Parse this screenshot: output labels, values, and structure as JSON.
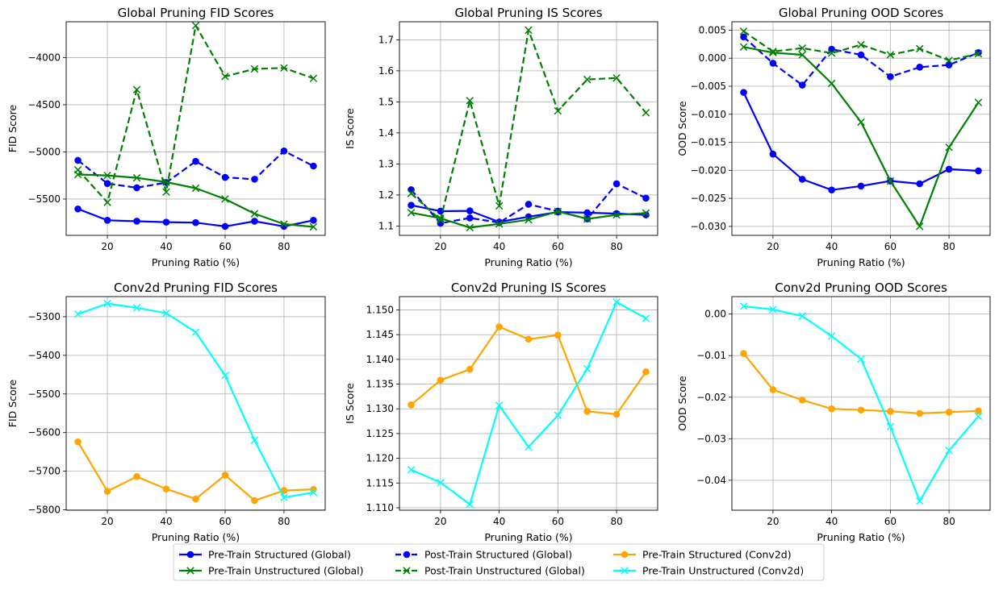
{
  "chart_data": [
    {
      "type": "line",
      "title": "Global Pruning FID Scores",
      "xlabel": "Pruning Ratio (%)",
      "ylabel": "FID Score",
      "xlim": [
        6,
        94
      ],
      "ylim": [
        -5885,
        -3620
      ],
      "xticks": [
        20,
        40,
        60,
        80
      ],
      "yticks": [
        -5500,
        -5000,
        -4500,
        -4000
      ],
      "grid": true,
      "x": [
        10,
        20,
        30,
        40,
        50,
        60,
        70,
        80,
        90
      ],
      "series": [
        {
          "name": "Pre-Train Structured (Global)",
          "color": "#0000ff",
          "marker": "circle",
          "dash": false,
          "values": [
            -5605,
            -5725,
            -5735,
            -5745,
            -5750,
            -5790,
            -5735,
            -5790,
            -5725
          ]
        },
        {
          "name": "Post-Train Structured (Global)",
          "color": "#0000ff",
          "marker": "circle",
          "dash": true,
          "values": [
            -5090,
            -5335,
            -5380,
            -5325,
            -5100,
            -5270,
            -5290,
            -4990,
            -5150
          ]
        },
        {
          "name": "Pre-Train Unstructured (Global)",
          "color": "#008000",
          "marker": "x",
          "dash": false,
          "values": [
            -5240,
            -5250,
            -5275,
            -5320,
            -5385,
            -5500,
            -5655,
            -5765,
            -5795
          ]
        },
        {
          "name": "Post-Train Unstructured (Global)",
          "color": "#008000",
          "marker": "x",
          "dash": true,
          "values": [
            -5190,
            -5535,
            -4340,
            -5425,
            -3660,
            -4200,
            -4120,
            -4110,
            -4220
          ]
        }
      ]
    },
    {
      "type": "line",
      "title": "Global Pruning IS Scores",
      "xlabel": "Pruning Ratio (%)",
      "ylabel": "IS Score",
      "xlim": [
        6,
        94
      ],
      "ylim": [
        1.07,
        1.758
      ],
      "xticks": [
        20,
        40,
        60,
        80
      ],
      "yticks": [
        1.1,
        1.2,
        1.3,
        1.4,
        1.5,
        1.6,
        1.7
      ],
      "grid": true,
      "x": [
        10,
        20,
        30,
        40,
        50,
        60,
        70,
        80,
        90
      ],
      "series": [
        {
          "name": "Pre-Train Structured (Global)",
          "color": "#0000ff",
          "marker": "circle",
          "dash": false,
          "values": [
            1.167,
            1.148,
            1.149,
            1.113,
            1.13,
            1.145,
            1.143,
            1.14,
            1.136
          ]
        },
        {
          "name": "Post-Train Structured (Global)",
          "color": "#0000ff",
          "marker": "circle",
          "dash": true,
          "values": [
            1.217,
            1.109,
            1.126,
            1.111,
            1.17,
            1.148,
            1.123,
            1.236,
            1.19
          ]
        },
        {
          "name": "Pre-Train Unstructured (Global)",
          "color": "#008000",
          "marker": "x",
          "dash": false,
          "values": [
            1.143,
            1.125,
            1.095,
            1.107,
            1.12,
            1.147,
            1.123,
            1.136,
            1.142
          ]
        },
        {
          "name": "Post-Train Unstructured (Global)",
          "color": "#008000",
          "marker": "x",
          "dash": true,
          "values": [
            1.205,
            1.12,
            1.504,
            1.165,
            1.731,
            1.471,
            1.572,
            1.577,
            1.465
          ]
        }
      ]
    },
    {
      "type": "line",
      "title": "Global Pruning OOD Scores",
      "xlabel": "Pruning Ratio (%)",
      "ylabel": "OOD Score",
      "xlim": [
        6,
        94
      ],
      "ylim": [
        -0.0316,
        0.0065
      ],
      "xticks": [
        20,
        40,
        60,
        80
      ],
      "ytick_labels": [
        "0.005",
        "0.000",
        "−0.005",
        "−0.010",
        "−0.015",
        "−0.020",
        "−0.025",
        "−0.030"
      ],
      "yticks": [
        0.005,
        0.0,
        -0.005,
        -0.01,
        -0.015,
        -0.02,
        -0.025,
        -0.03
      ],
      "grid": true,
      "x": [
        10,
        20,
        30,
        40,
        50,
        60,
        70,
        80,
        90
      ],
      "series": [
        {
          "name": "Pre-Train Structured (Global)",
          "color": "#0000ff",
          "marker": "circle",
          "dash": false,
          "values": [
            -0.0061,
            -0.0171,
            -0.0216,
            -0.0235,
            -0.0228,
            -0.0219,
            -0.0224,
            -0.0198,
            -0.0201
          ]
        },
        {
          "name": "Post-Train Structured (Global)",
          "color": "#0000ff",
          "marker": "circle",
          "dash": true,
          "values": [
            0.0038,
            -0.0009,
            -0.0048,
            0.0016,
            0.0006,
            -0.0033,
            -0.0016,
            -0.0012,
            0.001
          ]
        },
        {
          "name": "Pre-Train Unstructured (Global)",
          "color": "#008000",
          "marker": "x",
          "dash": false,
          "values": [
            0.002,
            0.001,
            0.0006,
            -0.0045,
            -0.0114,
            -0.0219,
            -0.03,
            -0.0159,
            -0.0079
          ]
        },
        {
          "name": "Post-Train Unstructured (Global)",
          "color": "#008000",
          "marker": "x",
          "dash": true,
          "values": [
            0.0048,
            0.0012,
            0.0018,
            0.0009,
            0.0024,
            0.0006,
            0.0017,
            -0.0004,
            0.0008
          ]
        }
      ]
    },
    {
      "type": "line",
      "title": "Conv2d Pruning FID Scores",
      "xlabel": "Pruning Ratio (%)",
      "ylabel": "FID Score",
      "xlim": [
        6,
        94
      ],
      "ylim": [
        -5801,
        -5248
      ],
      "xticks": [
        20,
        40,
        60,
        80
      ],
      "yticks": [
        -5800,
        -5700,
        -5600,
        -5500,
        -5400,
        -5300
      ],
      "grid": true,
      "x": [
        10,
        20,
        30,
        40,
        50,
        60,
        70,
        80,
        90
      ],
      "series": [
        {
          "name": "Pre-Train Structured (Conv2d)",
          "color": "#ffa500",
          "marker": "circle",
          "dash": false,
          "values": [
            -5624,
            -5752,
            -5714,
            -5746,
            -5772,
            -5710,
            -5776,
            -5750,
            -5747
          ]
        },
        {
          "name": "Pre-Train Unstructured (Conv2d)",
          "color": "#00ffff",
          "marker": "x",
          "dash": false,
          "values": [
            -5293,
            -5266,
            -5277,
            -5291,
            -5340,
            -5452,
            -5620,
            -5768,
            -5755
          ]
        }
      ]
    },
    {
      "type": "line",
      "title": "Conv2d Pruning IS Scores",
      "xlabel": "Pruning Ratio (%)",
      "ylabel": "IS Score",
      "xlim": [
        6,
        94
      ],
      "ylim": [
        1.1095,
        1.1527
      ],
      "xticks": [
        20,
        40,
        60,
        80
      ],
      "yticks": [
        1.11,
        1.115,
        1.12,
        1.125,
        1.13,
        1.135,
        1.14,
        1.145,
        1.15
      ],
      "ytick_labels": [
        "1.110",
        "1.115",
        "1.120",
        "1.125",
        "1.130",
        "1.135",
        "1.140",
        "1.145",
        "1.150"
      ],
      "grid": true,
      "x": [
        10,
        20,
        30,
        40,
        50,
        60,
        70,
        80,
        90
      ],
      "series": [
        {
          "name": "Pre-Train Structured (Conv2d)",
          "color": "#ffa500",
          "marker": "circle",
          "dash": false,
          "values": [
            1.1308,
            1.1358,
            1.138,
            1.1466,
            1.1441,
            1.1449,
            1.1295,
            1.1289,
            1.1375
          ]
        },
        {
          "name": "Pre-Train Unstructured (Conv2d)",
          "color": "#00ffff",
          "marker": "x",
          "dash": false,
          "values": [
            1.1177,
            1.1151,
            1.1107,
            1.1307,
            1.1223,
            1.1287,
            1.1381,
            1.1516,
            1.1483
          ]
        }
      ]
    },
    {
      "type": "line",
      "title": "Conv2d Pruning OOD Scores",
      "xlabel": "Pruning Ratio (%)",
      "ylabel": "OOD Score",
      "xlim": [
        6,
        94
      ],
      "ylim": [
        -0.0472,
        0.0042
      ],
      "xticks": [
        20,
        40,
        60,
        80
      ],
      "yticks": [
        0.0,
        -0.01,
        -0.02,
        -0.03,
        -0.04
      ],
      "ytick_labels": [
        "0.00",
        "−0.01",
        "−0.02",
        "−0.03",
        "−0.04"
      ],
      "grid": true,
      "x": [
        10,
        20,
        30,
        40,
        50,
        60,
        70,
        80,
        90
      ],
      "series": [
        {
          "name": "Pre-Train Structured (Conv2d)",
          "color": "#ffa500",
          "marker": "circle",
          "dash": false,
          "values": [
            -0.0095,
            -0.0182,
            -0.0207,
            -0.0228,
            -0.0231,
            -0.0234,
            -0.0239,
            -0.0236,
            -0.0233
          ]
        },
        {
          "name": "Pre-Train Unstructured (Conv2d)",
          "color": "#00ffff",
          "marker": "x",
          "dash": false,
          "values": [
            0.0019,
            0.0011,
            -0.0005,
            -0.0053,
            -0.0108,
            -0.0271,
            -0.045,
            -0.0328,
            -0.0246
          ]
        }
      ]
    }
  ],
  "legend": {
    "placement": "bottom-center",
    "entries": [
      {
        "label": "Pre-Train Structured (Global)",
        "color": "#0000ff",
        "marker": "circle",
        "dash": false
      },
      {
        "label": "Pre-Train Unstructured (Global)",
        "color": "#008000",
        "marker": "x",
        "dash": false
      },
      {
        "label": "Post-Train Structured (Global)",
        "color": "#0000ff",
        "marker": "circle",
        "dash": true
      },
      {
        "label": "Post-Train Unstructured (Global)",
        "color": "#008000",
        "marker": "x",
        "dash": true
      },
      {
        "label": "Pre-Train Structured (Conv2d)",
        "color": "#ffa500",
        "marker": "circle",
        "dash": false
      },
      {
        "label": "Pre-Train Unstructured (Conv2d)",
        "color": "#00ffff",
        "marker": "x",
        "dash": false
      }
    ]
  }
}
